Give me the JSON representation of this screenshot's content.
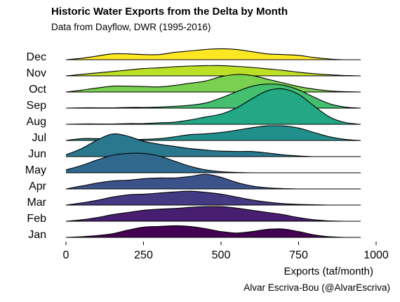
{
  "title": "Historic Water Exports from the Delta by Month",
  "subtitle": "Data from Dayflow, DWR (1995-2016)",
  "caption": "Alvar Escriva-Bou (@AlvarEscriva)",
  "chart_data": {
    "type": "area",
    "subtype": "ridgeline",
    "xlabel": "Exports (taf/month)",
    "xlim": [
      0,
      1000
    ],
    "xticks": [
      0,
      250,
      500,
      750,
      1000
    ],
    "x": [
      0,
      50,
      100,
      150,
      200,
      250,
      300,
      350,
      400,
      450,
      500,
      550,
      600,
      650,
      700,
      750,
      800,
      850,
      900,
      950
    ],
    "series": [
      {
        "name": "Jan",
        "color": "#440154",
        "values": [
          0,
          2,
          5,
          10,
          20,
          28,
          30,
          32,
          30,
          24,
          16,
          12,
          16,
          22,
          23,
          16,
          7,
          2,
          0,
          0
        ]
      },
      {
        "name": "Feb",
        "color": "#481f70",
        "values": [
          0,
          4,
          10,
          18,
          24,
          30,
          33,
          35,
          38,
          40,
          40,
          36,
          30,
          24,
          18,
          10,
          4,
          1,
          0,
          0
        ]
      },
      {
        "name": "Mar",
        "color": "#443a83",
        "values": [
          0,
          6,
          13,
          22,
          28,
          30,
          33,
          36,
          38,
          35,
          30,
          22,
          14,
          8,
          4,
          2,
          1,
          0,
          0,
          0
        ]
      },
      {
        "name": "Apr",
        "color": "#3b528b",
        "values": [
          0,
          8,
          16,
          22,
          24,
          28,
          30,
          30,
          34,
          40,
          32,
          18,
          8,
          3,
          1,
          0,
          0,
          0,
          0,
          0
        ]
      },
      {
        "name": "May",
        "color": "#31688e",
        "values": [
          8,
          20,
          35,
          48,
          53,
          53,
          46,
          32,
          18,
          8,
          3,
          1,
          0,
          0,
          0,
          0,
          0,
          0,
          0,
          0
        ]
      },
      {
        "name": "Jun",
        "color": "#2a788e",
        "values": [
          5,
          22,
          45,
          62,
          56,
          42,
          34,
          28,
          22,
          18,
          15,
          14,
          14,
          10,
          5,
          2,
          0,
          0,
          0,
          0
        ]
      },
      {
        "name": "Jul",
        "color": "#21908d",
        "values": [
          0,
          5,
          5,
          4,
          3,
          3,
          5,
          10,
          16,
          18,
          22,
          28,
          35,
          40,
          40,
          34,
          22,
          10,
          3,
          0
        ]
      },
      {
        "name": "Aug",
        "color": "#22a884",
        "values": [
          0,
          1,
          1,
          1,
          2,
          2,
          4,
          6,
          12,
          20,
          28,
          45,
          70,
          92,
          97,
          82,
          50,
          20,
          5,
          0
        ]
      },
      {
        "name": "Sep",
        "color": "#44bf70",
        "values": [
          0,
          1,
          1,
          1,
          2,
          2,
          3,
          5,
          8,
          14,
          28,
          45,
          60,
          66,
          63,
          50,
          30,
          12,
          3,
          0
        ]
      },
      {
        "name": "Oct",
        "color": "#7ad151",
        "values": [
          0,
          5,
          11,
          16,
          16,
          15,
          14,
          18,
          24,
          30,
          42,
          48,
          45,
          35,
          25,
          15,
          8,
          3,
          1,
          0
        ]
      },
      {
        "name": "Nov",
        "color": "#bddf26",
        "values": [
          0,
          4,
          8,
          12,
          16,
          20,
          22,
          25,
          27,
          28,
          28,
          26,
          23,
          19,
          15,
          10,
          6,
          3,
          1,
          0
        ]
      },
      {
        "name": "Dec",
        "color": "#fde725",
        "values": [
          0,
          4,
          10,
          16,
          16,
          14,
          14,
          20,
          24,
          28,
          30,
          28,
          22,
          16,
          14,
          12,
          6,
          2,
          0,
          0
        ]
      }
    ]
  }
}
